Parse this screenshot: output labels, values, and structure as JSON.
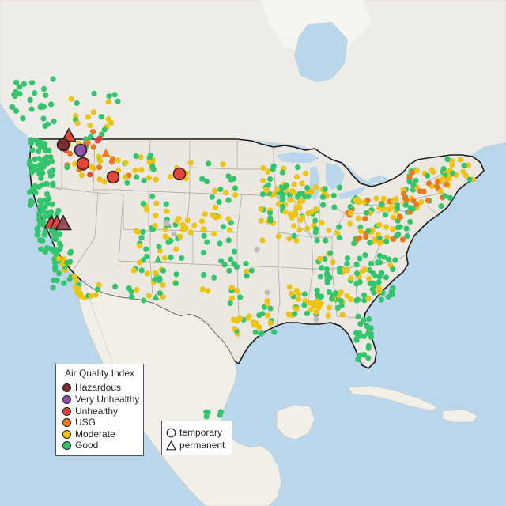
{
  "legend": {
    "title": "Air Quality Index",
    "categories": [
      {
        "label": "Hazardous",
        "color": "#7e2c2f"
      },
      {
        "label": "Very Unhealthy",
        "color": "#8e52a8"
      },
      {
        "label": "Unhealthy",
        "color": "#e5443a"
      },
      {
        "label": "USG",
        "color": "#ea7a1c"
      },
      {
        "label": "Moderate",
        "color": "#eec414"
      },
      {
        "label": "Good",
        "color": "#33c46e"
      }
    ]
  },
  "type_legend": {
    "temporary": "temporary",
    "permanent": "permanent"
  },
  "colors": {
    "water": "#b9d6ea",
    "land": "#f1efe8",
    "land_us": "#ebe8e1",
    "no_data": "#bdbdbd"
  }
}
